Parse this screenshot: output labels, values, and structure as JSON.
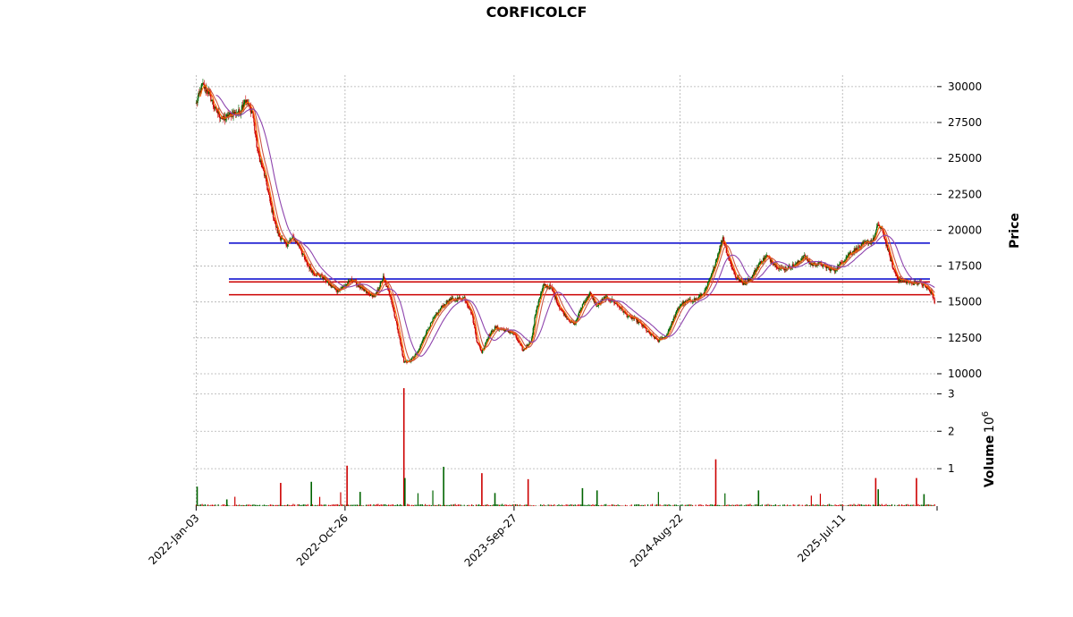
{
  "chart_data": {
    "type": "candlestick",
    "title": "CORFICOLCF",
    "price_panel": {
      "ylabel": "Price",
      "ylim": [
        9500,
        30800
      ],
      "ytick_values": [
        10000,
        12500,
        15000,
        17500,
        20000,
        22500,
        25000,
        27500,
        30000
      ],
      "ytick_labels": [
        "10000",
        "12500",
        "15000",
        "17500",
        "20000",
        "22500",
        "25000",
        "27500",
        "30000"
      ],
      "close_path": [
        [
          "2022-01-03",
          28800
        ],
        [
          "2022-01-15",
          30100
        ],
        [
          "2022-01-28",
          29600
        ],
        [
          "2022-02-10",
          28400
        ],
        [
          "2022-02-25",
          27700
        ],
        [
          "2022-03-15",
          28100
        ],
        [
          "2022-03-30",
          28200
        ],
        [
          "2022-04-10",
          29100
        ],
        [
          "2022-04-25",
          28200
        ],
        [
          "2022-05-05",
          25500
        ],
        [
          "2022-05-20",
          23700
        ],
        [
          "2022-06-01",
          21600
        ],
        [
          "2022-06-15",
          19700
        ],
        [
          "2022-07-01",
          19000
        ],
        [
          "2022-07-15",
          19500
        ],
        [
          "2022-07-30",
          18700
        ],
        [
          "2022-08-10",
          17700
        ],
        [
          "2022-08-25",
          17000
        ],
        [
          "2022-09-10",
          16800
        ],
        [
          "2022-09-25",
          16200
        ],
        [
          "2022-10-10",
          15800
        ],
        [
          "2022-10-26",
          16100
        ],
        [
          "2022-11-10",
          16600
        ],
        [
          "2022-11-25",
          16000
        ],
        [
          "2022-12-10",
          15600
        ],
        [
          "2022-12-25",
          15400
        ],
        [
          "2023-01-10",
          16700
        ],
        [
          "2023-01-25",
          15300
        ],
        [
          "2023-02-10",
          12700
        ],
        [
          "2023-02-20",
          10800
        ],
        [
          "2023-03-05",
          10900
        ],
        [
          "2023-03-20",
          11500
        ],
        [
          "2023-04-05",
          12900
        ],
        [
          "2023-04-20",
          13800
        ],
        [
          "2023-05-05",
          14600
        ],
        [
          "2023-05-20",
          15100
        ],
        [
          "2023-06-05",
          15200
        ],
        [
          "2023-06-20",
          15300
        ],
        [
          "2023-07-05",
          14200
        ],
        [
          "2023-07-15",
          12300
        ],
        [
          "2023-07-25",
          11500
        ],
        [
          "2023-08-05",
          12500
        ],
        [
          "2023-08-20",
          13200
        ],
        [
          "2023-09-05",
          13100
        ],
        [
          "2023-09-27",
          12800
        ],
        [
          "2023-10-15",
          11600
        ],
        [
          "2023-11-01",
          12400
        ],
        [
          "2023-11-10",
          14500
        ],
        [
          "2023-11-25",
          16200
        ],
        [
          "2023-12-10",
          16000
        ],
        [
          "2023-12-25",
          14700
        ],
        [
          "2024-01-10",
          13900
        ],
        [
          "2024-01-25",
          13400
        ],
        [
          "2024-02-10",
          14800
        ],
        [
          "2024-02-25",
          15600
        ],
        [
          "2024-03-10",
          14700
        ],
        [
          "2024-03-25",
          15300
        ],
        [
          "2024-04-10",
          15100
        ],
        [
          "2024-04-25",
          14600
        ],
        [
          "2024-05-10",
          14000
        ],
        [
          "2024-05-25",
          13800
        ],
        [
          "2024-06-10",
          13300
        ],
        [
          "2024-06-25",
          12700
        ],
        [
          "2024-07-10",
          12300
        ],
        [
          "2024-07-25",
          12600
        ],
        [
          "2024-08-10",
          13900
        ],
        [
          "2024-08-22",
          14800
        ],
        [
          "2024-09-10",
          15100
        ],
        [
          "2024-09-25",
          15200
        ],
        [
          "2024-10-10",
          15700
        ],
        [
          "2024-10-25",
          17000
        ],
        [
          "2024-11-05",
          18300
        ],
        [
          "2024-11-15",
          19500
        ],
        [
          "2024-11-25",
          18200
        ],
        [
          "2024-12-10",
          16800
        ],
        [
          "2024-12-25",
          16300
        ],
        [
          "2025-01-10",
          16600
        ],
        [
          "2025-01-25",
          17600
        ],
        [
          "2025-02-10",
          18200
        ],
        [
          "2025-02-25",
          17700
        ],
        [
          "2025-03-10",
          17300
        ],
        [
          "2025-03-25",
          17400
        ],
        [
          "2025-04-10",
          17600
        ],
        [
          "2025-04-25",
          18200
        ],
        [
          "2025-05-10",
          17600
        ],
        [
          "2025-05-25",
          17700
        ],
        [
          "2025-06-10",
          17400
        ],
        [
          "2025-06-25",
          17200
        ],
        [
          "2025-07-11",
          17800
        ],
        [
          "2025-07-25",
          18400
        ],
        [
          "2025-08-10",
          18700
        ],
        [
          "2025-08-25",
          19100
        ],
        [
          "2025-09-10",
          19300
        ],
        [
          "2025-09-20",
          20400
        ],
        [
          "2025-09-30",
          19800
        ],
        [
          "2025-10-10",
          18500
        ],
        [
          "2025-10-20",
          17300
        ],
        [
          "2025-10-30",
          16600
        ],
        [
          "2025-11-10",
          16500
        ],
        [
          "2025-11-25",
          16300
        ],
        [
          "2025-12-10",
          16400
        ],
        [
          "2025-12-25",
          16000
        ],
        [
          "2026-01-05",
          15600
        ],
        [
          "2026-01-10",
          14900
        ]
      ],
      "horizontal_lines": [
        {
          "value": 19100,
          "color": "#0000cc"
        },
        {
          "value": 16600,
          "color": "#0000cc"
        },
        {
          "value": 16400,
          "color": "#cc0000"
        },
        {
          "value": 15500,
          "color": "#cc0000"
        }
      ],
      "moving_average_colors": [
        "#ff6600",
        "#cc5544",
        "#8e44ad"
      ]
    },
    "volume_panel": {
      "ylabel": "Volume",
      "scale_label": "10",
      "scale_exponent": "6",
      "ylim": [
        0,
        3.2
      ],
      "ytick_values": [
        1,
        2,
        3
      ],
      "ytick_labels": [
        "1",
        "2",
        "3"
      ],
      "spikes": [
        {
          "date": "2022-01-05",
          "value": 0.52,
          "color": "#006400"
        },
        {
          "date": "2022-03-05",
          "value": 0.18,
          "color": "#006400"
        },
        {
          "date": "2022-06-20",
          "value": 0.62,
          "color": "#cc0000"
        },
        {
          "date": "2022-08-20",
          "value": 0.65,
          "color": "#006400"
        },
        {
          "date": "2022-10-30",
          "value": 1.08,
          "color": "#cc0000"
        },
        {
          "date": "2022-11-25",
          "value": 0.38,
          "color": "#006400"
        },
        {
          "date": "2023-02-20",
          "value": 3.15,
          "color": "#cc0000"
        },
        {
          "date": "2023-02-22",
          "value": 0.75,
          "color": "#006400"
        },
        {
          "date": "2023-05-10",
          "value": 1.05,
          "color": "#006400"
        },
        {
          "date": "2023-07-25",
          "value": 0.88,
          "color": "#cc0000"
        },
        {
          "date": "2023-08-20",
          "value": 0.35,
          "color": "#006400"
        },
        {
          "date": "2023-10-25",
          "value": 0.72,
          "color": "#cc0000"
        },
        {
          "date": "2024-02-10",
          "value": 0.48,
          "color": "#006400"
        },
        {
          "date": "2024-03-10",
          "value": 0.42,
          "color": "#006400"
        },
        {
          "date": "2024-11-01",
          "value": 1.25,
          "color": "#cc0000"
        },
        {
          "date": "2025-01-25",
          "value": 0.42,
          "color": "#006400"
        },
        {
          "date": "2025-09-15",
          "value": 0.75,
          "color": "#cc0000"
        },
        {
          "date": "2025-09-20",
          "value": 0.45,
          "color": "#006400"
        },
        {
          "date": "2025-12-05",
          "value": 0.75,
          "color": "#cc0000"
        },
        {
          "date": "2025-12-20",
          "value": 0.32,
          "color": "#006400"
        }
      ],
      "base_colors": [
        "#006400",
        "#cc0000"
      ]
    },
    "x_axis": {
      "range": [
        "2021-12-28",
        "2026-01-15"
      ],
      "tick_dates": [
        "2022-01-03",
        "2022-10-26",
        "2023-09-27",
        "2024-08-22",
        "2025-07-11"
      ],
      "tick_labels": [
        "2022-Jan-03",
        "2022-Oct-26",
        "2023-Sep-27",
        "2024-Aug-22",
        "2025-Jul-11"
      ]
    },
    "grid": true
  }
}
